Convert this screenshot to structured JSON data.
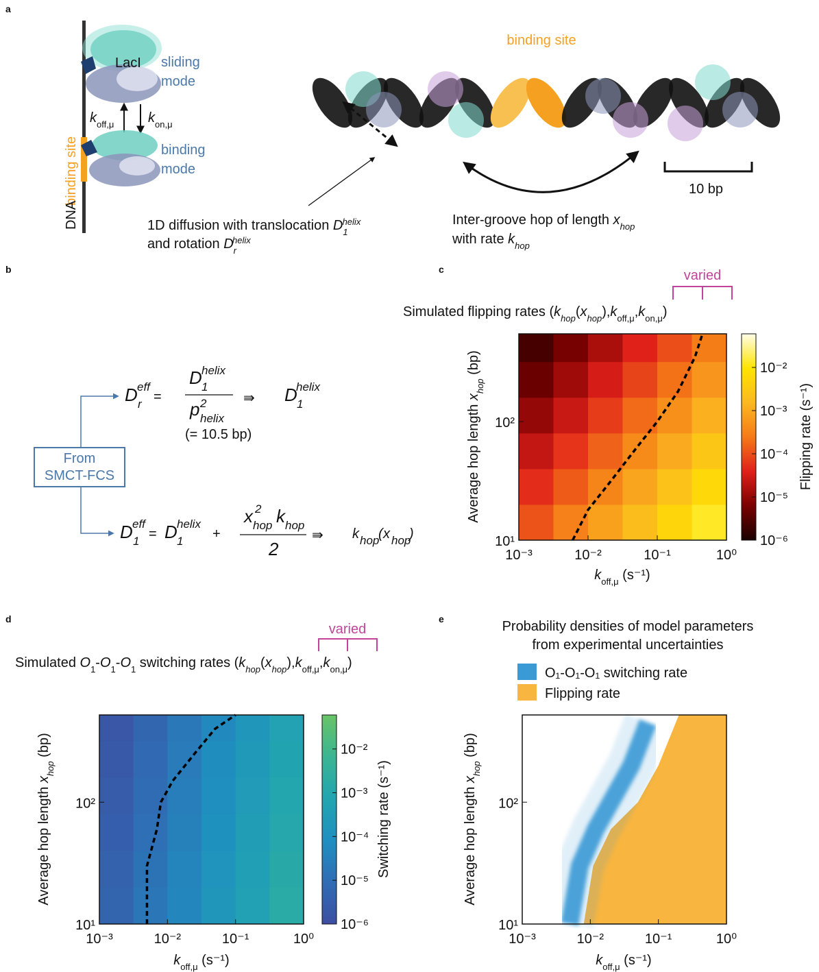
{
  "panel_a": {
    "label": "a",
    "lacI": "LacI",
    "sliding_mode": [
      "sliding",
      "mode"
    ],
    "binding_mode": [
      "binding",
      "mode"
    ],
    "binding_site_vertical": "binding site",
    "dna": "DNA",
    "k_off": [
      "k",
      "off,μ"
    ],
    "k_on": [
      "k",
      "on,μ"
    ],
    "binding_site": "binding site",
    "scale": "10 bp",
    "diffusion": [
      "1D diffusion with translocation ",
      "D",
      "1",
      "helix",
      "and rotation ",
      "D",
      "r",
      "helix"
    ],
    "hop": [
      "Inter-groove hop of length ",
      "x",
      "hop",
      "with rate ",
      "k",
      "hop"
    ]
  },
  "panel_b": {
    "label": "b",
    "source": [
      "From",
      "SMCT-FCS"
    ],
    "eq1": [
      "D",
      "r",
      "eff",
      "=",
      "D",
      "1",
      "helix",
      "p",
      "helix",
      "2",
      "⇛",
      "D",
      "1",
      "helix"
    ],
    "eq1_note": "(= 10.5 bp)",
    "eq2": [
      "D",
      "1",
      "eff",
      "=",
      "D",
      "1",
      "helix",
      "+",
      "x",
      "hop",
      "2",
      "k",
      "hop",
      "2",
      "⇛",
      "k",
      "hop",
      "(",
      "x",
      "hop",
      ")"
    ]
  },
  "chart_data": [
    {
      "type": "heatmap",
      "panel_label": "c",
      "varied": "varied",
      "title": [
        "Simulated flipping rates (",
        "k",
        "hop",
        "(",
        "x",
        "hop",
        "),",
        "k",
        "off,μ",
        ",",
        "k",
        "on,μ",
        ")"
      ],
      "xlabel": [
        "k",
        "off,μ",
        " (s⁻¹)"
      ],
      "ylabel": [
        "Average hop length ",
        "x",
        "hop",
        " (bp)"
      ],
      "colorbar_label": "Flipping rate (s⁻¹)",
      "log": true,
      "xlim": [
        0.001,
        1
      ],
      "ylim": [
        10,
        550
      ],
      "xticks": [
        {
          "value": 0.001,
          "label": "10⁻³"
        },
        {
          "value": 0.01,
          "label": "10⁻²"
        },
        {
          "value": 0.1,
          "label": "10⁻¹"
        },
        {
          "value": 1,
          "label": "10⁰"
        }
      ],
      "yticks": [
        {
          "value": 10,
          "label": "10¹"
        },
        {
          "value": 100,
          "label": "10²"
        }
      ],
      "xbins": [
        0.001,
        0.00316,
        0.01,
        0.0316,
        0.1,
        0.316,
        1
      ],
      "ybins": [
        10,
        20,
        40,
        80,
        160,
        320,
        550
      ],
      "z": [
        [
          0.00011,
          0.00029,
          0.00076,
          0.0019,
          0.0051,
          0.013
        ],
        [
          5e-05,
          0.00013,
          0.00034,
          0.00087,
          0.0023,
          0.0059
        ],
        [
          2.3e-05,
          5.9e-05,
          0.00015,
          0.0004,
          0.001,
          0.0027
        ],
        [
          1e-05,
          2.6e-05,
          6.9e-05,
          0.00018,
          0.00047,
          0.0012
        ],
        [
          4.7e-06,
          1.2e-05,
          3.2e-05,
          8.1e-05,
          0.00021,
          0.00055
        ],
        [
          2.3e-06,
          5.9e-06,
          1.5e-05,
          4e-05,
          0.0001,
          0.00027
        ]
      ],
      "zlim": [
        1e-06,
        0.06
      ],
      "zticks": [
        {
          "value": 1e-06,
          "label": "10⁻⁶"
        },
        {
          "value": 1e-05,
          "label": "10⁻⁵"
        },
        {
          "value": 0.0001,
          "label": "10⁻⁴"
        },
        {
          "value": 0.001,
          "label": "10⁻³"
        },
        {
          "value": 0.01,
          "label": "10⁻²"
        }
      ],
      "colormap": [
        "#1a0000",
        "#7a0000",
        "#e0201a",
        "#f57a18",
        "#fbb820",
        "#ffe400",
        "#fffde8"
      ],
      "lines": [
        {
          "x": [
            0.006,
            0.01,
            0.02,
            0.05,
            0.1,
            0.2,
            0.35,
            0.45
          ],
          "y": [
            10,
            18,
            30,
            60,
            100,
            180,
            350,
            550
          ],
          "color": "#000000",
          "dash": true
        }
      ]
    },
    {
      "type": "heatmap",
      "panel_label": "d",
      "varied": "varied",
      "title": [
        "Simulated ",
        "O",
        "1",
        "-",
        "O",
        "1",
        "-",
        "O",
        "1",
        " switching rates (",
        "k",
        "hop",
        "(",
        "x",
        "hop",
        "),",
        "k",
        "off,μ",
        ",",
        "k",
        "on,μ",
        ")"
      ],
      "xlabel": [
        "k",
        "off,μ",
        " (s⁻¹)"
      ],
      "ylabel": [
        "Average hop length ",
        "x",
        "hop",
        " (bp)"
      ],
      "colorbar_label": "Switching rate (s⁻¹)",
      "log": true,
      "xlim": [
        0.001,
        1
      ],
      "ylim": [
        10,
        520
      ],
      "xticks": [
        {
          "value": 0.001,
          "label": "10⁻³"
        },
        {
          "value": 0.01,
          "label": "10⁻²"
        },
        {
          "value": 0.1,
          "label": "10⁻¹"
        },
        {
          "value": 1,
          "label": "10⁰"
        }
      ],
      "yticks": [
        {
          "value": 10,
          "label": "10¹"
        },
        {
          "value": 100,
          "label": "10²"
        }
      ],
      "xbins": [
        0.001,
        0.00316,
        0.01,
        0.0316,
        0.1,
        0.316,
        1
      ],
      "ybins": [
        10,
        20,
        40,
        80,
        160,
        320,
        520
      ],
      "z": [
        [
          5e-06,
          1.6e-05,
          5e-05,
          0.00016,
          0.0005,
          0.0016
        ],
        [
          4e-06,
          1.3e-05,
          4e-05,
          0.00013,
          0.0004,
          0.0013
        ],
        [
          3.3e-06,
          1e-05,
          3.3e-05,
          0.0001,
          0.00033,
          0.001
        ],
        [
          2.7e-06,
          8.5e-06,
          2.7e-05,
          8.5e-05,
          0.00027,
          0.00085
        ],
        [
          2.2e-06,
          7e-06,
          2.2e-05,
          7e-05,
          0.00022,
          0.0007
        ],
        [
          1.8e-06,
          5.7e-06,
          1.8e-05,
          5.7e-05,
          0.00018,
          0.00057
        ]
      ],
      "zlim": [
        1e-06,
        0.06
      ],
      "zticks": [
        {
          "value": 1e-06,
          "label": "10⁻⁶"
        },
        {
          "value": 1e-05,
          "label": "10⁻⁵"
        },
        {
          "value": 0.0001,
          "label": "10⁻⁴"
        },
        {
          "value": 0.001,
          "label": "10⁻³"
        },
        {
          "value": 0.01,
          "label": "10⁻²"
        }
      ],
      "colormap": [
        "#3d4ea2",
        "#2f6db4",
        "#1f8fc0",
        "#22a5b0",
        "#3bb592",
        "#68c468"
      ],
      "lines": [
        {
          "x": [
            0.005,
            0.005,
            0.007,
            0.008,
            0.012,
            0.025,
            0.05,
            0.1
          ],
          "y": [
            10,
            30,
            60,
            100,
            150,
            250,
            400,
            520
          ],
          "color": "#000000",
          "dash": true
        }
      ]
    },
    {
      "type": "density",
      "panel_label": "e",
      "title": [
        "Probability densities of model parameters",
        "from experimental uncertainties"
      ],
      "xlabel": [
        "k",
        "off,μ",
        " (s⁻¹)"
      ],
      "ylabel": [
        "Average hop length ",
        "x",
        "hop",
        " (bp)"
      ],
      "log": true,
      "xlim": [
        0.001,
        1
      ],
      "ylim": [
        10,
        520
      ],
      "xticks": [
        {
          "value": 0.001,
          "label": "10⁻³"
        },
        {
          "value": 0.01,
          "label": "10⁻²"
        },
        {
          "value": 0.1,
          "label": "10⁻¹"
        },
        {
          "value": 1,
          "label": "10⁰"
        }
      ],
      "yticks": [
        {
          "value": 10,
          "label": "10¹"
        },
        {
          "value": 100,
          "label": "10²"
        }
      ],
      "series": [
        {
          "name": "O₁-O₁-O₁ switching rate",
          "color": "#3a9ad6",
          "x": [
            0.005,
            0.007,
            0.012,
            0.02,
            0.04,
            0.07
          ],
          "y": [
            10,
            30,
            60,
            100,
            200,
            450
          ]
        },
        {
          "name": "Flipping rate",
          "color": "#f8b540",
          "x": [
            0.008,
            0.011,
            0.02,
            0.05,
            0.1,
            0.2
          ],
          "y": [
            10,
            30,
            60,
            100,
            200,
            520
          ]
        }
      ]
    }
  ]
}
